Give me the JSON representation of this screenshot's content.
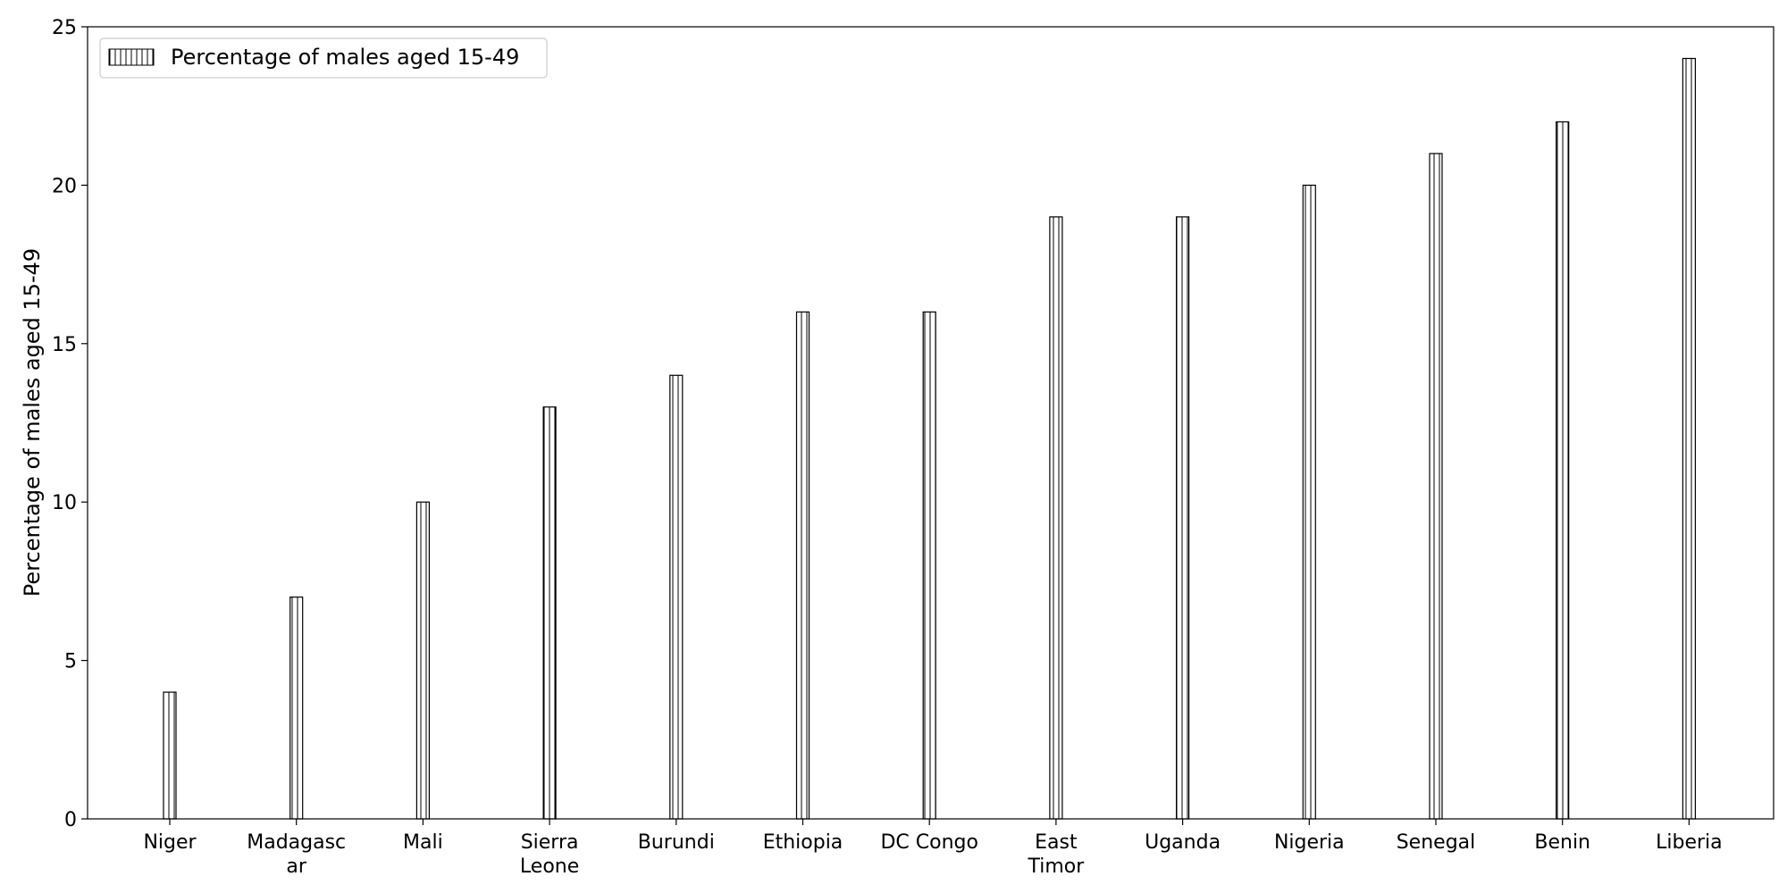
{
  "chart_data": {
    "type": "bar",
    "categories": [
      "Niger",
      "Madagascar",
      "Mali",
      "Sierra Leone",
      "Burundi",
      "Ethiopia",
      "DC Congo",
      "East Timor",
      "Uganda",
      "Nigeria",
      "Senegal",
      "Benin",
      "Liberia"
    ],
    "category_label_lines": [
      [
        "Niger"
      ],
      [
        "Madagasc",
        "ar"
      ],
      [
        "Mali"
      ],
      [
        "Sierra",
        "Leone"
      ],
      [
        "Burundi"
      ],
      [
        "Ethiopia"
      ],
      [
        "DC Congo"
      ],
      [
        "East",
        "Timor"
      ],
      [
        "Uganda"
      ],
      [
        "Nigeria"
      ],
      [
        "Senegal"
      ],
      [
        "Benin"
      ],
      [
        "Liberia"
      ]
    ],
    "series": [
      {
        "name": "Percentage of males aged 15-49",
        "values": [
          4,
          7,
          10,
          13,
          14,
          16,
          16,
          19,
          19,
          20,
          21,
          22,
          24
        ]
      }
    ],
    "title": "",
    "xlabel": "",
    "ylabel": "Percentage of males aged 15-49",
    "ylim": [
      0,
      25
    ],
    "yticks": [
      0,
      5,
      10,
      15,
      20,
      25
    ],
    "grid": false,
    "legend": "top-left",
    "colors": {
      "bar_fill": "#ffffff",
      "bar_edge": "#000000",
      "hatch": "#000000"
    },
    "hatch": "vertical-lines"
  }
}
